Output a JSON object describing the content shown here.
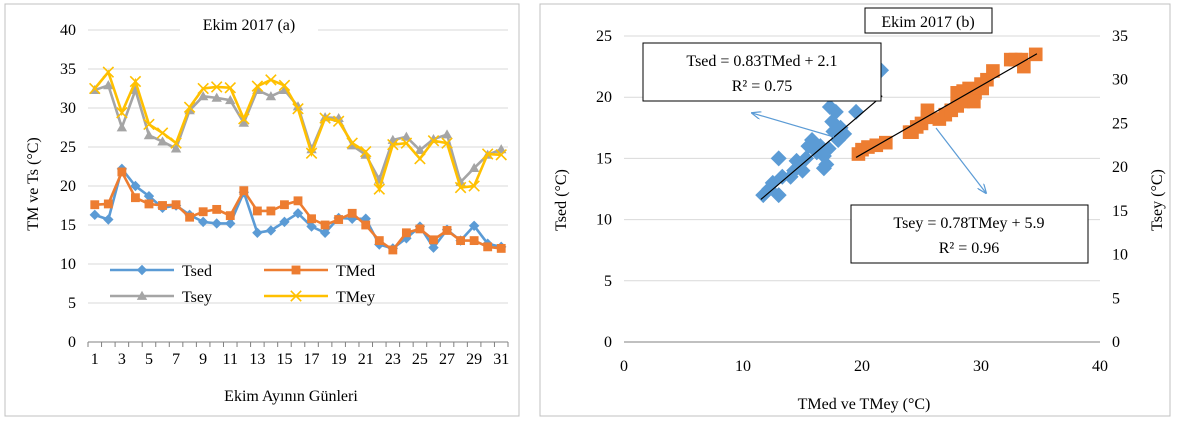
{
  "chart_data": [
    {
      "type": "line",
      "title": "Ekim 2017 (a)",
      "xlabel": "Ekim Ayının Günleri",
      "ylabel": "TM ve Ts (°C)",
      "ylim": [
        0,
        40
      ],
      "yticks": [
        0,
        5,
        10,
        15,
        20,
        25,
        30,
        35,
        40
      ],
      "xticks": [
        1,
        3,
        5,
        7,
        9,
        11,
        13,
        15,
        17,
        19,
        21,
        23,
        25,
        27,
        29,
        31
      ],
      "grid": true,
      "legend": "bottom-center",
      "x": [
        1,
        2,
        3,
        4,
        5,
        6,
        7,
        8,
        9,
        10,
        11,
        12,
        13,
        14,
        15,
        16,
        17,
        18,
        19,
        20,
        21,
        22,
        23,
        24,
        25,
        26,
        27,
        28,
        29,
        30,
        31
      ],
      "series": [
        {
          "name": "Tsed",
          "color": "#5B9BD5",
          "marker": "diamond",
          "values": [
            16.3,
            15.7,
            22.2,
            20.0,
            18.7,
            17.2,
            17.5,
            16.3,
            15.4,
            15.2,
            15.2,
            19.2,
            14.0,
            14.3,
            15.4,
            16.5,
            14.8,
            14.0,
            15.9,
            15.8,
            15.8,
            12.5,
            12.0,
            13.3,
            14.8,
            12.1,
            14.4,
            13.0,
            14.9,
            12.6,
            12.2
          ]
        },
        {
          "name": "TMed",
          "color": "#ED7D31",
          "marker": "square",
          "values": [
            17.6,
            17.7,
            21.8,
            18.5,
            17.7,
            17.5,
            17.6,
            16.0,
            16.7,
            17.0,
            16.2,
            19.4,
            16.8,
            16.8,
            17.6,
            18.1,
            15.8,
            15.0,
            15.7,
            16.5,
            15.0,
            13.0,
            11.8,
            14.0,
            14.5,
            13.1,
            14.3,
            13.0,
            13.0,
            12.2,
            12.0
          ]
        },
        {
          "name": "Tsey",
          "color": "#A5A5A5",
          "marker": "triangle",
          "values": [
            32.3,
            32.9,
            27.5,
            32.3,
            26.5,
            25.7,
            24.8,
            29.7,
            31.5,
            31.3,
            31.0,
            28.1,
            32.3,
            31.5,
            32.3,
            30.2,
            24.7,
            28.8,
            28.7,
            25.2,
            24.0,
            20.8,
            25.9,
            26.3,
            24.6,
            26.0,
            26.6,
            20.5,
            22.3,
            24.0,
            24.7
          ]
        },
        {
          "name": "TMey",
          "color": "#FFC000",
          "marker": "x",
          "values": [
            32.5,
            34.6,
            29.4,
            33.4,
            27.9,
            26.8,
            25.5,
            30.1,
            32.5,
            32.7,
            32.6,
            28.6,
            32.8,
            33.6,
            32.9,
            29.9,
            24.2,
            28.7,
            28.3,
            25.5,
            24.4,
            19.6,
            25.3,
            25.5,
            23.5,
            25.8,
            25.5,
            19.8,
            20.0,
            24.1,
            24.0
          ]
        }
      ]
    },
    {
      "type": "scatter",
      "title": "Ekim 2017 (b)",
      "xlabel": "TMed ve TMey (°C)",
      "ylabel": "Tsed (°C)",
      "y2label": "Tsey (°C)",
      "xlim": [
        0,
        40
      ],
      "ylim": [
        0,
        25
      ],
      "y2lim": [
        0,
        35
      ],
      "xticks": [
        0,
        10,
        20,
        30,
        40
      ],
      "yticks": [
        0,
        5,
        10,
        15,
        20,
        25
      ],
      "y2ticks": [
        0,
        5,
        10,
        15,
        20,
        25,
        30,
        35
      ],
      "grid": true,
      "series": [
        {
          "name": "Tsed",
          "axis": "left",
          "color": "#5B9BD5",
          "marker": "diamond",
          "points": [
            [
              11.7,
              12.0
            ],
            [
              12.2,
              12.5
            ],
            [
              12.5,
              13.0
            ],
            [
              13.0,
              12.0
            ],
            [
              13.3,
              13.5
            ],
            [
              13.0,
              15.0
            ],
            [
              14.0,
              13.5
            ],
            [
              14.5,
              14.8
            ],
            [
              15.0,
              14.0
            ],
            [
              15.3,
              15.0
            ],
            [
              15.5,
              16.0
            ],
            [
              16.0,
              16.2
            ],
            [
              16.2,
              15.5
            ],
            [
              16.5,
              16.0
            ],
            [
              16.8,
              14.2
            ],
            [
              17.0,
              14.5
            ],
            [
              17.2,
              15.8
            ],
            [
              17.5,
              18.0
            ],
            [
              17.6,
              17.2
            ],
            [
              17.8,
              18.8
            ],
            [
              18.0,
              16.5
            ],
            [
              18.2,
              17.5
            ],
            [
              19.5,
              18.8
            ],
            [
              21.6,
              22.2
            ],
            [
              14.3,
              14.0
            ],
            [
              15.8,
              16.5
            ],
            [
              16.8,
              15.2
            ],
            [
              17.3,
              19.2
            ],
            [
              18.5,
              17.0
            ]
          ]
        },
        {
          "name": "Tsey",
          "axis": "right",
          "color": "#ED7D31",
          "marker": "square",
          "points": [
            [
              19.7,
              21.5
            ],
            [
              20.0,
              22.0
            ],
            [
              20.5,
              22.3
            ],
            [
              21.2,
              22.5
            ],
            [
              22.0,
              22.8
            ],
            [
              24.0,
              24.0
            ],
            [
              24.6,
              24.6
            ],
            [
              25.0,
              25.0
            ],
            [
              25.5,
              25.7
            ],
            [
              25.5,
              26.5
            ],
            [
              26.5,
              25.5
            ],
            [
              27.0,
              26.0
            ],
            [
              27.5,
              26.5
            ],
            [
              28.0,
              27.0
            ],
            [
              28.5,
              27.5
            ],
            [
              28.0,
              28.5
            ],
            [
              28.5,
              28.7
            ],
            [
              29.0,
              29.0
            ],
            [
              29.5,
              28.5
            ],
            [
              30.0,
              29.5
            ],
            [
              30.1,
              29.0
            ],
            [
              30.5,
              30.0
            ],
            [
              31.0,
              31.0
            ],
            [
              32.5,
              32.3
            ],
            [
              32.9,
              32.3
            ],
            [
              33.4,
              32.3
            ],
            [
              33.6,
              31.5
            ],
            [
              34.6,
              32.9
            ],
            [
              29.4,
              27.5
            ],
            [
              24.2,
              24.0
            ]
          ]
        }
      ],
      "fits": [
        {
          "axis": "left",
          "color": "#000000",
          "slope": 0.83,
          "intercept": 2.1,
          "x_range": [
            11.5,
            21.7
          ],
          "equation": "Tsed = 0.83TMed + 2.1",
          "r2": "R² = 0.75"
        },
        {
          "axis": "right",
          "color": "#000000",
          "slope": 0.78,
          "intercept": 5.9,
          "x_range": [
            19.5,
            34.7
          ],
          "equation": "Tsey = 0.78TMey + 5.9",
          "r2": "R² = 0.96"
        }
      ]
    }
  ]
}
